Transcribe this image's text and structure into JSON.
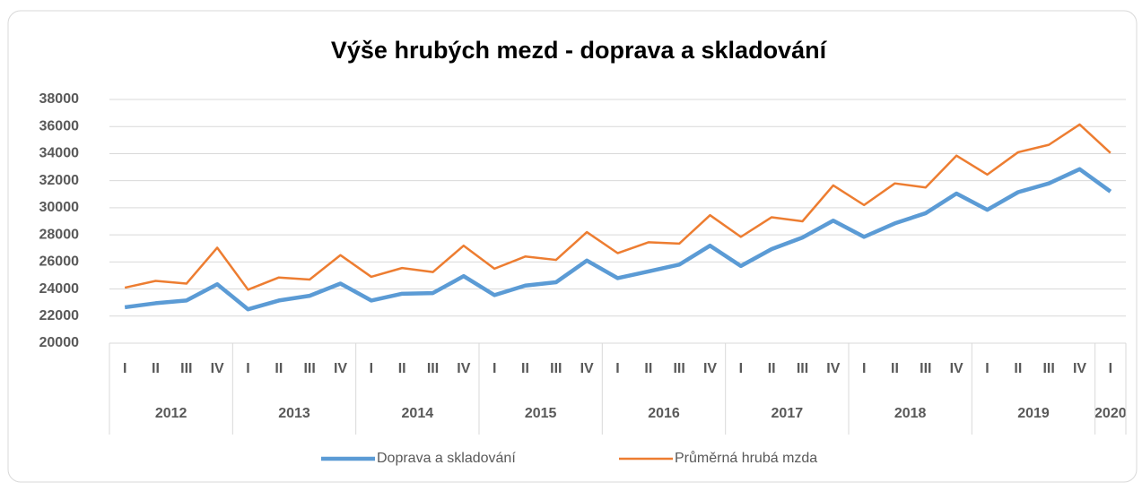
{
  "chart_data": {
    "type": "line",
    "title": "Výše hrubých mezd - doprava a skladování",
    "categories": [
      "I",
      "II",
      "III",
      "IV",
      "I",
      "II",
      "III",
      "IV",
      "I",
      "II",
      "III",
      "IV",
      "I",
      "II",
      "III",
      "IV",
      "I",
      "II",
      "III",
      "IV",
      "I",
      "II",
      "III",
      "IV",
      "I",
      "II",
      "III",
      "IV",
      "I",
      "II",
      "III",
      "IV",
      "I"
    ],
    "groups": [
      "2012",
      "2013",
      "2014",
      "2015",
      "2016",
      "2017",
      "2018",
      "2019",
      "2020"
    ],
    "series": [
      {
        "name": "Doprava a skladování",
        "color": "#5b9bd5",
        "values": [
          22650,
          22950,
          23150,
          24350,
          22500,
          23150,
          23500,
          24400,
          23150,
          23650,
          23700,
          24950,
          23550,
          24250,
          24500,
          26100,
          24800,
          25300,
          25800,
          27200,
          25700,
          26950,
          27800,
          29050,
          27850,
          28850,
          29600,
          31050,
          29850,
          31150,
          31800,
          32850,
          31200
        ]
      },
      {
        "name": "Průměrná hrubá mzda",
        "color": "#ed7d31",
        "values": [
          24100,
          24600,
          24400,
          27050,
          23950,
          24850,
          24700,
          26500,
          24900,
          25550,
          25250,
          27200,
          25500,
          26400,
          26150,
          28200,
          26650,
          27450,
          27350,
          29450,
          27850,
          29300,
          29000,
          31650,
          30200,
          31800,
          31500,
          33850,
          32450,
          34100,
          34650,
          36150,
          34050
        ]
      }
    ],
    "ylim": [
      20000,
      38000
    ],
    "yticks": [
      20000,
      22000,
      24000,
      26000,
      28000,
      30000,
      32000,
      34000,
      36000,
      38000
    ],
    "grid": true,
    "legend": "bottom"
  }
}
